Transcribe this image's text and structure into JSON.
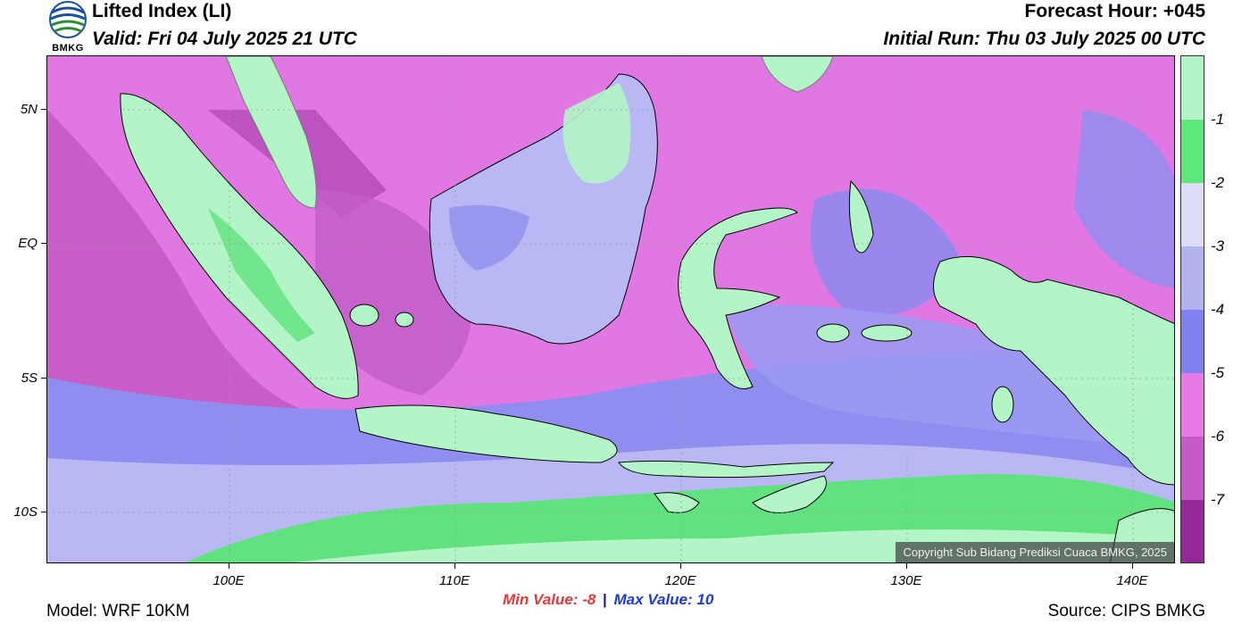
{
  "header": {
    "title": "Lifted Index (LI)",
    "valid": "Valid: Fri 04 July 2025 21 UTC",
    "forecast_hour": "Forecast Hour: +045",
    "initial_run": "Initial Run: Thu 03 July 2025 00 UTC",
    "logo_text": "BMKG"
  },
  "axes": {
    "y_labels": [
      "5N",
      "EQ",
      "5S",
      "10S"
    ],
    "x_labels": [
      "100E",
      "110E",
      "120E",
      "130E",
      "140E"
    ]
  },
  "colorbar": {
    "labels": [
      "-1",
      "-2",
      "-3",
      "-4",
      "-5",
      "-6",
      "-7"
    ],
    "colors": [
      "#b3f5c8",
      "#5ce87a",
      "#dcdcf8",
      "#b3b3f0",
      "#8080f0",
      "#e77ae7",
      "#c55ac8",
      "#93289a"
    ]
  },
  "stats": {
    "min_label": "Min Value:",
    "min_value": "-8",
    "separator": "|",
    "max_label": "Max Value:",
    "max_value": "10"
  },
  "footer": {
    "model": "Model: WRF 10KM",
    "source": "Source: CIPS BMKG",
    "copyright": "Copyright Sub Bidang Prediksi Cuaca BMKG, 2025"
  }
}
